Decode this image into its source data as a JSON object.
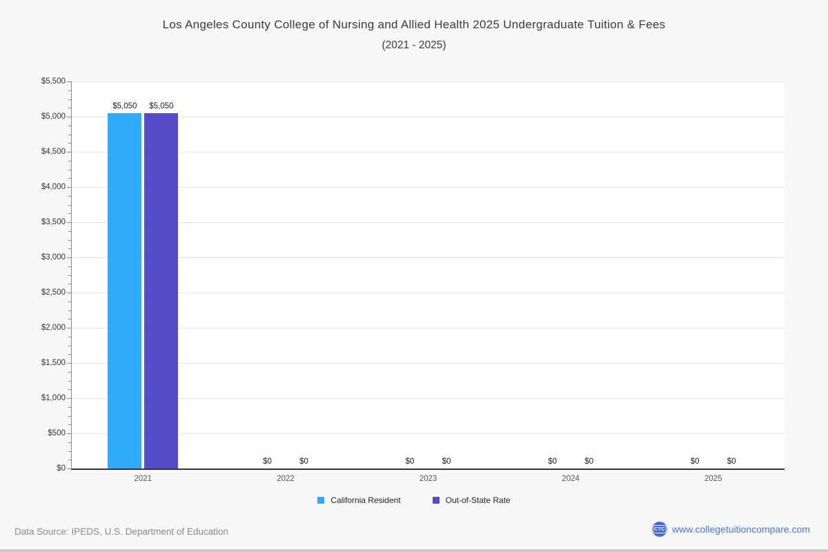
{
  "chart_data": {
    "type": "bar",
    "title": "Los Angeles County College of Nursing and Allied Health 2025 Undergraduate Tuition & Fees",
    "subtitle": "(2021 - 2025)",
    "categories": [
      "2021",
      "2022",
      "2023",
      "2024",
      "2025"
    ],
    "series": [
      {
        "name": "California Resident",
        "color": "#2fabfa",
        "values": [
          5050,
          0,
          0,
          0,
          0
        ],
        "value_labels": [
          "$5,050",
          "$0",
          "$0",
          "$0",
          "$0"
        ]
      },
      {
        "name": "Out-of-State Rate",
        "color": "#544dc7",
        "values": [
          5050,
          0,
          0,
          0,
          0
        ],
        "value_labels": [
          "$5,050",
          "$0",
          "$0",
          "$0",
          "$0"
        ]
      }
    ],
    "ylim": [
      0,
      5500
    ],
    "y_major_step": 500,
    "y_minor_step": 125,
    "y_tick_labels": [
      "$0",
      "$500",
      "$1,000",
      "$1,500",
      "$2,000",
      "$2,500",
      "$3,000",
      "$3,500",
      "$4,000",
      "$4,500",
      "$5,000",
      "$5,500"
    ],
    "grid": true,
    "legend_position": "bottom"
  },
  "footer": {
    "source": "Data Source: IPEDS, U.S. Department of Education",
    "logo": "CTC",
    "website": "www.collegetuitioncompare.com"
  },
  "colors": {
    "background": "#f7f7f7",
    "plot_background": "#ffffff",
    "gridline": "#e6e6e6",
    "axis_line": "#333333",
    "y_axis_line": "#888888",
    "tick": "#888888",
    "title_text": "#3a3a3a",
    "label_text": "#333333",
    "year_text": "#555555",
    "source_text": "#8a8a8a",
    "website_text": "#4a72d8",
    "logo_bg": "#3f6ad8",
    "bottom_strip": "#c9c9c9",
    "series_blue": "#2fabfa",
    "series_purple": "#544dc7"
  }
}
